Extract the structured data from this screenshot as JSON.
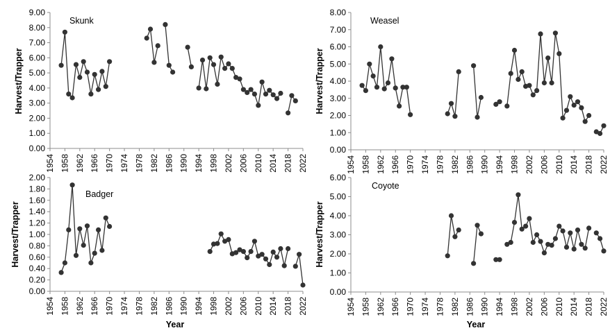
{
  "chart_data": [
    {
      "type": "line",
      "title": "Skunk",
      "xlabel": "Year",
      "ylabel": "Harvest/Trapper",
      "xlim": [
        1954,
        2022
      ],
      "ylim": [
        0,
        9
      ],
      "xticks": [
        1954,
        1958,
        1962,
        1966,
        1970,
        1974,
        1978,
        1982,
        1986,
        1990,
        1994,
        1998,
        2002,
        2006,
        2010,
        2014,
        2018,
        2022
      ],
      "yticks": [
        "0.00",
        "1.00",
        "2.00",
        "3.00",
        "4.00",
        "5.00",
        "6.00",
        "7.00",
        "8.00",
        "9.00"
      ],
      "series": [
        {
          "name": "Skunk",
          "segments": [
            [
              [
                1957,
                5.5
              ],
              [
                1958,
                7.7
              ],
              [
                1959,
                3.6
              ],
              [
                1960,
                3.35
              ],
              [
                1961,
                5.55
              ],
              [
                1962,
                4.7
              ],
              [
                1963,
                5.75
              ],
              [
                1964,
                5.05
              ],
              [
                1965,
                3.6
              ],
              [
                1966,
                4.9
              ],
              [
                1967,
                3.9
              ],
              [
                1968,
                5.1
              ],
              [
                1969,
                4.1
              ],
              [
                1970,
                5.75
              ]
            ],
            [
              [
                1980,
                7.3
              ],
              [
                1981,
                7.9
              ],
              [
                1982,
                5.7
              ],
              [
                1983,
                6.8
              ]
            ],
            [
              [
                1985,
                8.2
              ],
              [
                1986,
                5.5
              ],
              [
                1987,
                5.05
              ]
            ],
            [
              [
                1991,
                6.7
              ],
              [
                1992,
                5.4
              ]
            ],
            [
              [
                1994,
                4.0
              ],
              [
                1995,
                5.85
              ],
              [
                1996,
                3.95
              ],
              [
                1997,
                6.0
              ],
              [
                1998,
                5.55
              ],
              [
                1999,
                4.25
              ],
              [
                2000,
                6.05
              ],
              [
                2001,
                5.3
              ],
              [
                2002,
                5.6
              ],
              [
                2003,
                5.3
              ],
              [
                2004,
                4.7
              ],
              [
                2005,
                4.6
              ],
              [
                2006,
                3.9
              ],
              [
                2007,
                3.7
              ],
              [
                2008,
                3.9
              ],
              [
                2009,
                3.6
              ],
              [
                2010,
                2.85
              ],
              [
                2011,
                4.4
              ],
              [
                2012,
                3.6
              ],
              [
                2013,
                3.85
              ],
              [
                2014,
                3.55
              ],
              [
                2015,
                3.3
              ],
              [
                2016,
                3.65
              ]
            ],
            [
              [
                2018,
                2.35
              ],
              [
                2019,
                3.5
              ],
              [
                2020,
                3.15
              ]
            ]
          ]
        }
      ]
    },
    {
      "type": "line",
      "title": "Weasel",
      "xlabel": "Year",
      "ylabel": "Harvest/Trapper",
      "xlim": [
        1954,
        2022
      ],
      "ylim": [
        0,
        8
      ],
      "xticks": [
        1954,
        1958,
        1962,
        1966,
        1970,
        1974,
        1978,
        1982,
        1986,
        1990,
        1994,
        1998,
        2002,
        2006,
        2010,
        2014,
        2018,
        2022
      ],
      "yticks": [
        "0.00",
        "1.00",
        "2.00",
        "3.00",
        "4.00",
        "5.00",
        "6.00",
        "7.00",
        "8.00"
      ],
      "series": [
        {
          "name": "Weasel",
          "segments": [
            [
              [
                1957,
                3.75
              ],
              [
                1958,
                3.45
              ],
              [
                1959,
                5.0
              ],
              [
                1960,
                4.3
              ],
              [
                1961,
                3.65
              ],
              [
                1962,
                6.0
              ],
              [
                1963,
                3.55
              ],
              [
                1964,
                3.9
              ],
              [
                1965,
                5.3
              ],
              [
                1966,
                3.6
              ],
              [
                1967,
                2.55
              ],
              [
                1968,
                3.65
              ],
              [
                1969,
                3.65
              ],
              [
                1970,
                2.05
              ]
            ],
            [
              [
                1980,
                2.1
              ],
              [
                1981,
                2.7
              ],
              [
                1982,
                1.95
              ],
              [
                1983,
                4.55
              ]
            ],
            [
              [
                1987,
                4.9
              ],
              [
                1988,
                1.9
              ],
              [
                1989,
                3.05
              ]
            ],
            [
              [
                1993,
                2.65
              ],
              [
                1994,
                2.8
              ]
            ],
            [
              [
                1996,
                2.55
              ],
              [
                1997,
                4.45
              ],
              [
                1998,
                5.8
              ],
              [
                1999,
                4.1
              ],
              [
                2000,
                4.55
              ],
              [
                2001,
                3.7
              ],
              [
                2002,
                3.75
              ],
              [
                2003,
                3.2
              ],
              [
                2004,
                3.45
              ],
              [
                2005,
                6.75
              ],
              [
                2006,
                3.9
              ],
              [
                2007,
                5.35
              ],
              [
                2008,
                3.9
              ],
              [
                2009,
                6.8
              ],
              [
                2010,
                5.6
              ],
              [
                2011,
                1.85
              ],
              [
                2012,
                2.3
              ],
              [
                2013,
                3.1
              ],
              [
                2014,
                2.6
              ],
              [
                2015,
                2.8
              ],
              [
                2016,
                2.45
              ],
              [
                2017,
                1.65
              ],
              [
                2018,
                2.0
              ]
            ],
            [
              [
                2020,
                1.05
              ],
              [
                2021,
                0.95
              ],
              [
                2022,
                1.4
              ]
            ]
          ]
        }
      ]
    },
    {
      "type": "line",
      "title": "Badger",
      "xlabel": "Year",
      "ylabel": "Harvest/Trapper",
      "xlim": [
        1954,
        2022
      ],
      "ylim": [
        0,
        2
      ],
      "xticks": [
        1954,
        1958,
        1962,
        1966,
        1970,
        1974,
        1978,
        1982,
        1986,
        1990,
        1994,
        1998,
        2002,
        2006,
        2010,
        2014,
        2018,
        2022
      ],
      "yticks": [
        "0.00",
        "0.20",
        "0.40",
        "0.60",
        "0.80",
        "1.00",
        "1.20",
        "1.40",
        "1.60",
        "1.80",
        "2.00"
      ],
      "series": [
        {
          "name": "Badger",
          "segments": [
            [
              [
                1957,
                0.33
              ],
              [
                1958,
                0.5
              ],
              [
                1959,
                1.08
              ],
              [
                1960,
                1.87
              ],
              [
                1961,
                0.63
              ],
              [
                1962,
                1.1
              ],
              [
                1963,
                0.81
              ],
              [
                1964,
                1.15
              ],
              [
                1965,
                0.5
              ],
              [
                1966,
                0.67
              ],
              [
                1967,
                1.08
              ],
              [
                1968,
                0.72
              ],
              [
                1969,
                1.29
              ],
              [
                1970,
                1.14
              ]
            ],
            [
              [
                1997,
                0.7
              ],
              [
                1998,
                0.83
              ],
              [
                1999,
                0.84
              ],
              [
                2000,
                1.01
              ],
              [
                2001,
                0.88
              ],
              [
                2002,
                0.91
              ],
              [
                2003,
                0.66
              ],
              [
                2004,
                0.68
              ],
              [
                2005,
                0.73
              ],
              [
                2006,
                0.7
              ],
              [
                2007,
                0.59
              ],
              [
                2008,
                0.7
              ],
              [
                2009,
                0.88
              ],
              [
                2010,
                0.62
              ],
              [
                2011,
                0.65
              ],
              [
                2012,
                0.57
              ],
              [
                2013,
                0.47
              ],
              [
                2014,
                0.69
              ],
              [
                2015,
                0.6
              ],
              [
                2016,
                0.75
              ],
              [
                2017,
                0.45
              ],
              [
                2018,
                0.75
              ]
            ],
            [
              [
                2020,
                0.44
              ],
              [
                2021,
                0.65
              ],
              [
                2022,
                0.11
              ]
            ]
          ]
        }
      ]
    },
    {
      "type": "line",
      "title": "Coyote",
      "xlabel": "Year",
      "ylabel": "Harvest/Trapper",
      "xlim": [
        1954,
        2022
      ],
      "ylim": [
        0,
        6
      ],
      "xticks": [
        1954,
        1958,
        1962,
        1966,
        1970,
        1974,
        1978,
        1982,
        1986,
        1990,
        1994,
        1998,
        2002,
        2006,
        2010,
        2014,
        2018,
        2022
      ],
      "yticks": [
        "0.00",
        "1.00",
        "2.00",
        "3.00",
        "4.00",
        "5.00",
        "6.00"
      ],
      "series": [
        {
          "name": "Coyote",
          "segments": [
            [
              [
                1980,
                1.9
              ],
              [
                1981,
                4.0
              ],
              [
                1982,
                2.9
              ],
              [
                1983,
                3.25
              ]
            ],
            [
              [
                1987,
                1.5
              ],
              [
                1988,
                3.5
              ],
              [
                1989,
                3.05
              ]
            ],
            [
              [
                1993,
                1.7
              ],
              [
                1994,
                1.7
              ]
            ],
            [
              [
                1996,
                2.5
              ],
              [
                1997,
                2.6
              ],
              [
                1998,
                3.65
              ],
              [
                1999,
                5.1
              ],
              [
                2000,
                3.3
              ],
              [
                2001,
                3.45
              ],
              [
                2002,
                3.85
              ],
              [
                2003,
                2.6
              ],
              [
                2004,
                3.0
              ],
              [
                2005,
                2.65
              ],
              [
                2006,
                2.05
              ],
              [
                2007,
                2.5
              ],
              [
                2008,
                2.45
              ],
              [
                2009,
                2.8
              ],
              [
                2010,
                3.45
              ],
              [
                2011,
                3.2
              ],
              [
                2012,
                2.35
              ],
              [
                2013,
                3.1
              ],
              [
                2014,
                2.25
              ],
              [
                2015,
                3.25
              ],
              [
                2016,
                2.5
              ],
              [
                2017,
                2.3
              ],
              [
                2018,
                3.35
              ]
            ],
            [
              [
                2020,
                3.1
              ],
              [
                2021,
                2.8
              ],
              [
                2022,
                2.15
              ]
            ]
          ]
        }
      ]
    }
  ]
}
